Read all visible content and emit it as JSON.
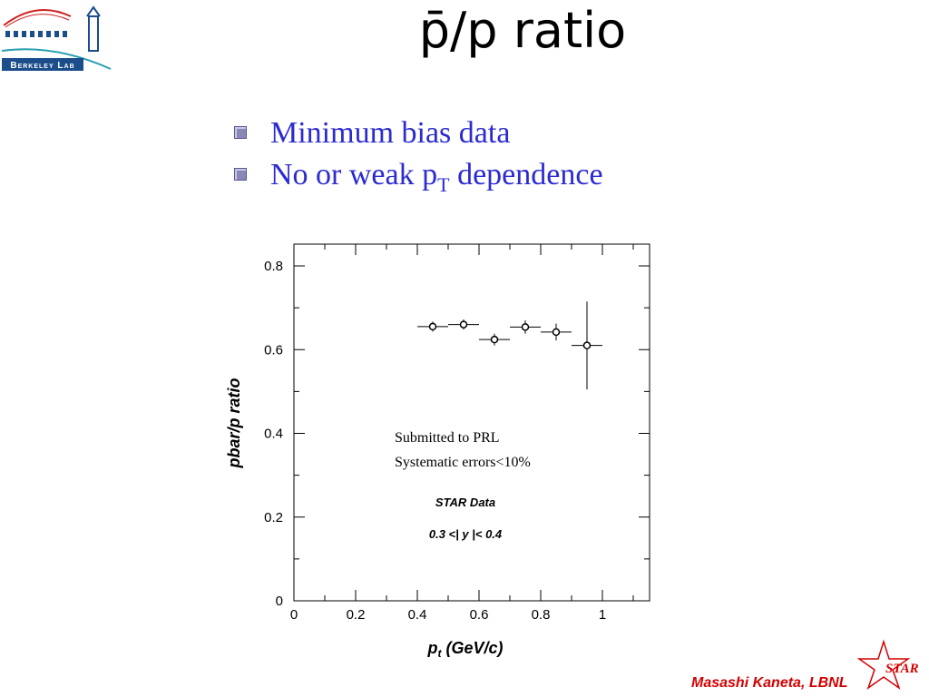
{
  "logo": {
    "text": "Berkeley Lab"
  },
  "slide": {
    "title": "p̄/p ratio",
    "bullets": [
      {
        "text": "Minimum bias data",
        "sub": "",
        "after": ""
      },
      {
        "text": "No or weak p",
        "sub": "T",
        "after": " dependence"
      }
    ]
  },
  "chart_data": {
    "type": "scatter",
    "xlabel": "p",
    "xlabel_sub": "t",
    "xlabel_unit": " (GeV/c)",
    "ylabel": "pbar/p ratio",
    "xlim": [
      0,
      1.15
    ],
    "ylim": [
      0,
      0.85
    ],
    "xticks": [
      0,
      0.2,
      0.4,
      0.6,
      0.8,
      1
    ],
    "xtick_labels": [
      "0",
      "0.2",
      "0.4",
      "0.6",
      "0.8",
      "1"
    ],
    "yticks": [
      0,
      0.2,
      0.4,
      0.6,
      0.8
    ],
    "ytick_labels": [
      "0",
      "0.2",
      "0.4",
      "0.6",
      "0.8"
    ],
    "grid": false,
    "points": [
      {
        "x": 0.45,
        "y": 0.655,
        "xerr": 0.05,
        "yerr": 0.012
      },
      {
        "x": 0.55,
        "y": 0.66,
        "xerr": 0.05,
        "yerr": 0.012
      },
      {
        "x": 0.65,
        "y": 0.624,
        "xerr": 0.05,
        "yerr": 0.014
      },
      {
        "x": 0.75,
        "y": 0.654,
        "xerr": 0.05,
        "yerr": 0.016
      },
      {
        "x": 0.85,
        "y": 0.642,
        "xerr": 0.05,
        "yerr": 0.02
      },
      {
        "x": 0.95,
        "y": 0.61,
        "xerr": 0.05,
        "yerr": 0.105
      }
    ],
    "annotations": {
      "note_line1": "Submitted to PRL",
      "note_line2": "Systematic errors<10%",
      "star_data": "STAR Data",
      "rapidity_cut": "0.3 <| y |< 0.4"
    }
  },
  "footer": {
    "author": "Masashi Kaneta, LBNL",
    "star_logo_text": "STAR",
    "accent_color": "#d40000"
  }
}
